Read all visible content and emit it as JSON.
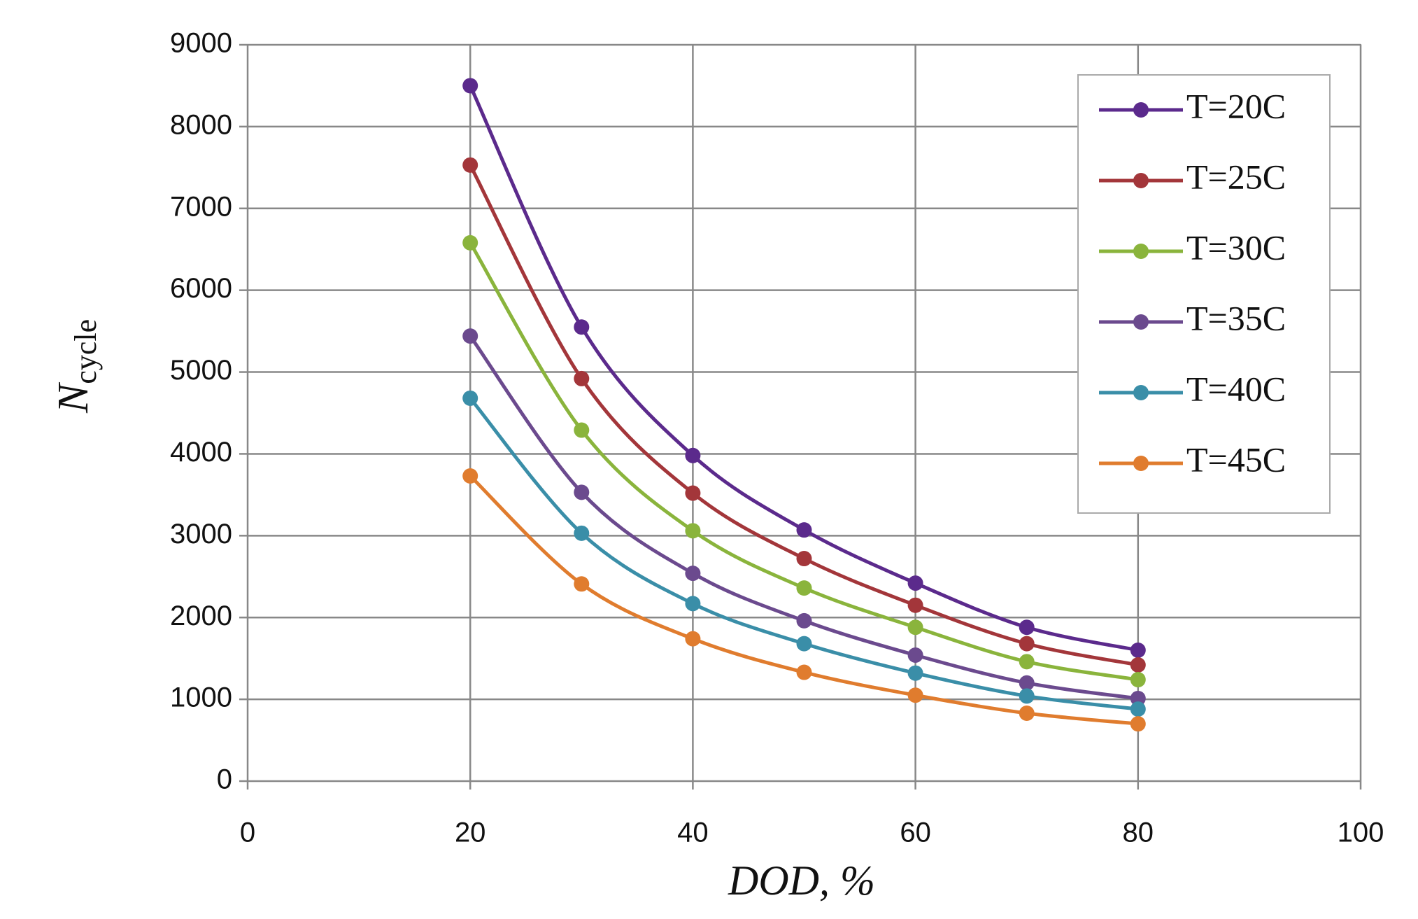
{
  "chart_data": {
    "type": "line",
    "xlabel": "DOD, %",
    "ylabel": "N",
    "ylabel_subscript": "cycle",
    "x": [
      20,
      30,
      40,
      50,
      60,
      70,
      80
    ],
    "series": [
      {
        "name": "T=20C",
        "color": "#5b2a8c",
        "values": [
          8500,
          5550,
          3980,
          3070,
          2420,
          1880,
          1600
        ]
      },
      {
        "name": "T=25C",
        "color": "#a3363a",
        "values": [
          7530,
          4920,
          3520,
          2720,
          2150,
          1680,
          1420
        ]
      },
      {
        "name": "T=30C",
        "color": "#8ab43c",
        "values": [
          6580,
          4290,
          3060,
          2360,
          1880,
          1460,
          1240
        ]
      },
      {
        "name": "T=35C",
        "color": "#6b4a8e",
        "values": [
          5440,
          3530,
          2540,
          1960,
          1540,
          1200,
          1010
        ]
      },
      {
        "name": "T=40C",
        "color": "#3a8ea8",
        "values": [
          4680,
          3030,
          2170,
          1680,
          1320,
          1040,
          880
        ]
      },
      {
        "name": "T=45C",
        "color": "#e07c2e",
        "values": [
          3730,
          2410,
          1740,
          1330,
          1050,
          830,
          700
        ]
      }
    ],
    "xlim": [
      0,
      100
    ],
    "xticks": [
      0,
      20,
      40,
      60,
      80,
      100
    ],
    "ylim": [
      0,
      9000
    ],
    "yticks": [
      0,
      1000,
      2000,
      3000,
      4000,
      5000,
      6000,
      7000,
      8000,
      9000
    ],
    "grid": true,
    "legend": "upper right"
  }
}
